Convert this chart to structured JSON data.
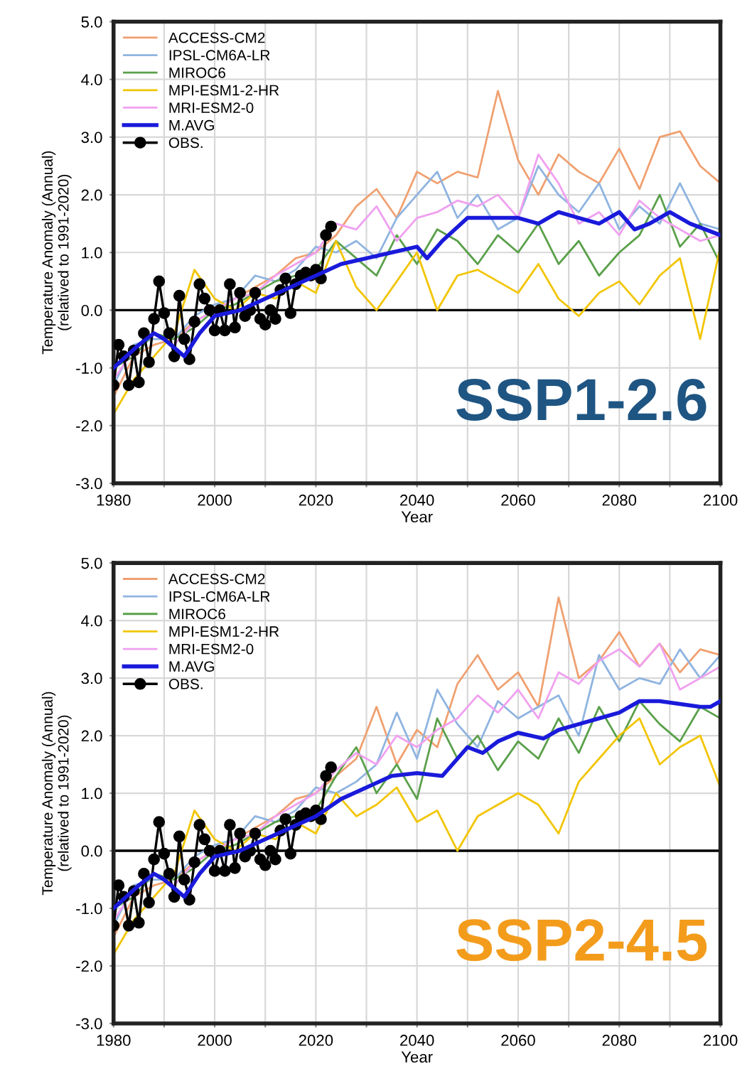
{
  "chart_data": [
    {
      "type": "line",
      "xlabel": "Year",
      "ylabel": "Temperature Anomaly (Annual)\n(relatived to 1991-2020)",
      "annotations": [
        "SSP1-2.6"
      ],
      "xlim": [
        1980,
        2100
      ],
      "xticks": [
        1980,
        {
          "value": 1990,
          "label": null
        },
        2000,
        {
          "value": 2010,
          "label": null
        },
        2020,
        {
          "value": 2030,
          "label": null
        },
        2040,
        {
          "value": 2050,
          "label": null
        },
        2060,
        {
          "value": 2070,
          "label": null
        },
        2080,
        {
          "value": 2090,
          "label": null
        },
        2100
      ],
      "ylim": [
        -3,
        5
      ],
      "yticks": [
        {
          "value": -3,
          "label": "-3.0"
        },
        {
          "value": -2,
          "label": "-2.0"
        },
        {
          "value": -1,
          "label": "-1.0"
        },
        {
          "value": 0,
          "label": "0.0"
        },
        {
          "value": 1,
          "label": "1.0"
        },
        {
          "value": 2,
          "label": "2.0"
        },
        {
          "value": 3,
          "label": "3.0"
        },
        {
          "value": 4,
          "label": "4.0"
        },
        {
          "value": 5,
          "label": "5.0"
        }
      ],
      "grid": true,
      "legend": "top left",
      "line_style": "solid",
      "ref_lines": [
        {
          "axis": "y",
          "value": 0,
          "color": "#000000"
        }
      ],
      "series": [
        {
          "name": "ACCESS-CM2",
          "color": "#f0a070",
          "x": [
            1980,
            1984,
            1988,
            1992,
            1996,
            2000,
            2004,
            2008,
            2012,
            2016,
            2020,
            2024,
            2028,
            2032,
            2036,
            2040,
            2044,
            2048,
            2052,
            2056,
            2060,
            2064,
            2068,
            2072,
            2076,
            2080,
            2084,
            2088,
            2092,
            2096,
            2100
          ],
          "values": [
            -1.5,
            -0.8,
            -0.6,
            -0.5,
            -0.2,
            0.0,
            0.2,
            0.4,
            0.6,
            0.9,
            1.0,
            1.3,
            1.8,
            2.1,
            1.6,
            2.4,
            2.2,
            2.4,
            2.3,
            3.8,
            2.6,
            2.0,
            2.7,
            2.4,
            2.2,
            2.8,
            2.1,
            3.0,
            3.1,
            2.5,
            2.2
          ]
        },
        {
          "name": "IPSL-CM6A-LR",
          "color": "#8fb4e0",
          "x": [
            1980,
            1984,
            1988,
            1992,
            1996,
            2000,
            2004,
            2008,
            2012,
            2016,
            2020,
            2024,
            2028,
            2032,
            2036,
            2040,
            2044,
            2048,
            2052,
            2056,
            2060,
            2064,
            2068,
            2072,
            2076,
            2080,
            2084,
            2088,
            2092,
            2096,
            2100
          ],
          "values": [
            -1.3,
            -0.6,
            -0.5,
            -0.5,
            -0.1,
            0.1,
            0.2,
            0.6,
            0.5,
            0.7,
            1.1,
            1.0,
            1.2,
            0.9,
            1.6,
            2.0,
            2.4,
            1.6,
            2.0,
            1.4,
            1.6,
            2.5,
            2.0,
            1.7,
            2.2,
            1.4,
            1.8,
            1.5,
            2.2,
            1.5,
            1.4
          ]
        },
        {
          "name": "MIROC6",
          "color": "#5aa04a",
          "x": [
            1980,
            1984,
            1988,
            1992,
            1996,
            2000,
            2004,
            2008,
            2012,
            2016,
            2020,
            2024,
            2028,
            2032,
            2036,
            2040,
            2044,
            2048,
            2052,
            2056,
            2060,
            2064,
            2068,
            2072,
            2076,
            2080,
            2084,
            2088,
            2092,
            2096,
            2100
          ],
          "values": [
            -1.0,
            -0.8,
            -0.4,
            -0.5,
            -0.3,
            0.0,
            0.1,
            0.3,
            0.5,
            0.6,
            0.7,
            1.2,
            0.9,
            0.6,
            1.3,
            0.8,
            1.4,
            1.2,
            0.8,
            1.3,
            1.0,
            1.5,
            0.8,
            1.2,
            0.6,
            1.0,
            1.3,
            2.0,
            1.1,
            1.5,
            0.8
          ]
        },
        {
          "name": "MPI-ESM1-2-HR",
          "color": "#f2c500",
          "x": [
            1980,
            1984,
            1988,
            1992,
            1996,
            2000,
            2004,
            2008,
            2012,
            2016,
            2020,
            2024,
            2028,
            2032,
            2036,
            2040,
            2044,
            2048,
            2052,
            2056,
            2060,
            2064,
            2068,
            2072,
            2076,
            2080,
            2084,
            2088,
            2092,
            2096,
            2100
          ],
          "values": [
            -1.8,
            -1.2,
            -0.8,
            -0.4,
            0.7,
            0.2,
            0.0,
            0.3,
            0.2,
            0.5,
            0.3,
            1.2,
            0.4,
            0.0,
            0.5,
            1.0,
            0.0,
            0.6,
            0.7,
            0.5,
            0.3,
            0.8,
            0.2,
            -0.1,
            0.3,
            0.5,
            0.1,
            0.6,
            0.9,
            -0.5,
            1.1
          ]
        },
        {
          "name": "MRI-ESM2-0",
          "color": "#f0a0f0",
          "x": [
            1980,
            1984,
            1988,
            1992,
            1996,
            2000,
            2004,
            2008,
            2012,
            2016,
            2020,
            2024,
            2028,
            2032,
            2036,
            2040,
            2044,
            2048,
            2052,
            2056,
            2060,
            2064,
            2068,
            2072,
            2076,
            2080,
            2084,
            2088,
            2092,
            2096,
            2100
          ],
          "values": [
            -1.2,
            -0.7,
            -0.4,
            -0.6,
            -0.2,
            0.0,
            0.2,
            0.3,
            0.6,
            0.8,
            1.0,
            1.5,
            1.4,
            1.8,
            1.2,
            1.6,
            1.7,
            1.9,
            1.8,
            2.0,
            1.6,
            2.7,
            2.2,
            1.5,
            1.7,
            1.3,
            1.9,
            1.6,
            1.4,
            1.2,
            1.3
          ]
        },
        {
          "name": "M.AVG",
          "color": "#1a1adb",
          "x": [
            1980,
            1985,
            1988,
            1990,
            1994,
            1997,
            2000,
            2005,
            2010,
            2015,
            2020,
            2025,
            2030,
            2035,
            2040,
            2042,
            2045,
            2050,
            2055,
            2060,
            2064,
            2068,
            2072,
            2076,
            2080,
            2083,
            2086,
            2090,
            2094,
            2100
          ],
          "values": [
            -1.0,
            -0.6,
            -0.4,
            -0.5,
            -0.8,
            -0.4,
            -0.1,
            0.0,
            0.2,
            0.4,
            0.6,
            0.8,
            0.9,
            1.0,
            1.1,
            0.9,
            1.2,
            1.6,
            1.6,
            1.6,
            1.5,
            1.7,
            1.6,
            1.5,
            1.7,
            1.4,
            1.5,
            1.7,
            1.5,
            1.3
          ]
        },
        {
          "name": "OBS.",
          "color": "#000000",
          "marker": "circle",
          "x": [
            1980,
            1981,
            1982,
            1983,
            1984,
            1985,
            1986,
            1987,
            1988,
            1989,
            1990,
            1991,
            1992,
            1993,
            1994,
            1995,
            1996,
            1997,
            1998,
            1999,
            2000,
            2001,
            2002,
            2003,
            2004,
            2005,
            2006,
            2007,
            2008,
            2009,
            2010,
            2011,
            2012,
            2013,
            2014,
            2015,
            2016,
            2017,
            2018,
            2019,
            2020,
            2021,
            2022,
            2023
          ],
          "values": [
            -1.3,
            -0.6,
            -0.8,
            -1.3,
            -0.7,
            -1.25,
            -0.4,
            -0.9,
            -0.15,
            0.5,
            -0.05,
            -0.4,
            -0.8,
            0.25,
            -0.5,
            -0.85,
            -0.2,
            0.45,
            0.2,
            0.0,
            -0.35,
            0.0,
            -0.35,
            0.45,
            -0.3,
            0.3,
            -0.1,
            0.0,
            0.3,
            -0.15,
            -0.25,
            0.0,
            -0.15,
            0.35,
            0.55,
            -0.05,
            0.45,
            0.6,
            0.65,
            0.6,
            0.7,
            0.55,
            1.3,
            1.45
          ]
        }
      ]
    },
    {
      "type": "line",
      "xlabel": "Year",
      "ylabel": "Temperature Anomaly (Annual)\n(relatived to 1991-2020)",
      "annotations": [
        "SSP2-4.5"
      ],
      "xlim": [
        1980,
        2100
      ],
      "xticks": [
        1980,
        {
          "value": 1990,
          "label": null
        },
        2000,
        {
          "value": 2010,
          "label": null
        },
        2020,
        {
          "value": 2030,
          "label": null
        },
        2040,
        {
          "value": 2050,
          "label": null
        },
        2060,
        {
          "value": 2070,
          "label": null
        },
        2080,
        {
          "value": 2090,
          "label": null
        },
        2100
      ],
      "ylim": [
        -3,
        5
      ],
      "yticks": [
        {
          "value": -3,
          "label": "-3.0"
        },
        {
          "value": -2,
          "label": "-2.0"
        },
        {
          "value": -1,
          "label": "-1.0"
        },
        {
          "value": 0,
          "label": "0.0"
        },
        {
          "value": 1,
          "label": "1.0"
        },
        {
          "value": 2,
          "label": "2.0"
        },
        {
          "value": 3,
          "label": "3.0"
        },
        {
          "value": 4,
          "label": "4.0"
        },
        {
          "value": 5,
          "label": "5.0"
        }
      ],
      "grid": true,
      "legend": "top left",
      "line_style": "solid",
      "ref_lines": [
        {
          "axis": "y",
          "value": 0,
          "color": "#000000"
        }
      ],
      "series": [
        {
          "name": "ACCESS-CM2",
          "color": "#f0a070",
          "x": [
            1980,
            1984,
            1988,
            1992,
            1996,
            2000,
            2004,
            2008,
            2012,
            2016,
            2020,
            2024,
            2028,
            2032,
            2036,
            2040,
            2044,
            2048,
            2052,
            2056,
            2060,
            2064,
            2068,
            2072,
            2076,
            2080,
            2084,
            2088,
            2092,
            2096,
            2100
          ],
          "values": [
            -1.5,
            -0.8,
            -0.6,
            -0.5,
            -0.2,
            0.0,
            0.2,
            0.4,
            0.6,
            0.9,
            1.0,
            1.3,
            1.6,
            2.5,
            1.5,
            2.1,
            1.8,
            2.9,
            3.4,
            2.8,
            3.1,
            2.5,
            4.4,
            3.0,
            3.3,
            3.8,
            3.2,
            3.6,
            3.1,
            3.5,
            3.4
          ]
        },
        {
          "name": "IPSL-CM6A-LR",
          "color": "#8fb4e0",
          "x": [
            1980,
            1984,
            1988,
            1992,
            1996,
            2000,
            2004,
            2008,
            2012,
            2016,
            2020,
            2024,
            2028,
            2032,
            2036,
            2040,
            2044,
            2048,
            2052,
            2056,
            2060,
            2064,
            2068,
            2072,
            2076,
            2080,
            2084,
            2088,
            2092,
            2096,
            2100
          ],
          "values": [
            -1.3,
            -0.6,
            -0.5,
            -0.5,
            -0.1,
            0.1,
            0.2,
            0.6,
            0.5,
            0.7,
            1.1,
            1.0,
            1.2,
            1.5,
            2.4,
            1.6,
            2.8,
            2.2,
            1.8,
            2.6,
            2.3,
            2.5,
            2.7,
            2.0,
            3.4,
            2.8,
            3.0,
            2.9,
            3.5,
            3.0,
            3.4
          ]
        },
        {
          "name": "MIROC6",
          "color": "#5aa04a",
          "x": [
            1980,
            1984,
            1988,
            1992,
            1996,
            2000,
            2004,
            2008,
            2012,
            2016,
            2020,
            2024,
            2028,
            2032,
            2036,
            2040,
            2044,
            2048,
            2052,
            2056,
            2060,
            2064,
            2068,
            2072,
            2076,
            2080,
            2084,
            2088,
            2092,
            2096,
            2100
          ],
          "values": [
            -1.0,
            -0.8,
            -0.4,
            -0.5,
            -0.3,
            0.0,
            0.1,
            0.3,
            0.5,
            0.6,
            0.7,
            1.3,
            1.8,
            1.0,
            1.5,
            0.9,
            2.3,
            1.6,
            2.0,
            1.4,
            1.9,
            1.6,
            2.3,
            1.7,
            2.5,
            1.9,
            2.6,
            2.2,
            1.9,
            2.5,
            2.3
          ]
        },
        {
          "name": "MPI-ESM1-2-HR",
          "color": "#f2c500",
          "x": [
            1980,
            1984,
            1988,
            1992,
            1996,
            2000,
            2004,
            2008,
            2012,
            2016,
            2020,
            2024,
            2028,
            2032,
            2036,
            2040,
            2044,
            2048,
            2052,
            2056,
            2060,
            2064,
            2068,
            2072,
            2076,
            2080,
            2084,
            2088,
            2092,
            2096,
            2100
          ],
          "values": [
            -1.8,
            -1.2,
            -0.8,
            -0.4,
            0.7,
            0.2,
            0.0,
            0.3,
            0.2,
            0.5,
            0.3,
            1.0,
            0.6,
            0.8,
            1.1,
            0.5,
            0.7,
            0.0,
            0.6,
            0.8,
            1.0,
            0.8,
            0.3,
            1.2,
            1.6,
            2.0,
            2.3,
            1.5,
            1.8,
            2.0,
            1.1
          ]
        },
        {
          "name": "MRI-ESM2-0",
          "color": "#f0a0f0",
          "x": [
            1980,
            1984,
            1988,
            1992,
            1996,
            2000,
            2004,
            2008,
            2012,
            2016,
            2020,
            2024,
            2028,
            2032,
            2036,
            2040,
            2044,
            2048,
            2052,
            2056,
            2060,
            2064,
            2068,
            2072,
            2076,
            2080,
            2084,
            2088,
            2092,
            2096,
            2100
          ],
          "values": [
            -1.2,
            -0.7,
            -0.4,
            -0.6,
            -0.2,
            0.0,
            0.2,
            0.3,
            0.6,
            0.8,
            1.0,
            1.4,
            1.7,
            1.5,
            2.0,
            1.8,
            2.1,
            2.3,
            2.7,
            2.4,
            2.8,
            2.3,
            3.1,
            2.9,
            3.3,
            3.5,
            3.2,
            3.6,
            2.8,
            3.0,
            3.2
          ]
        },
        {
          "name": "M.AVG",
          "color": "#1a1adb",
          "x": [
            1980,
            1985,
            1988,
            1990,
            1994,
            1997,
            2000,
            2005,
            2010,
            2015,
            2020,
            2025,
            2030,
            2035,
            2040,
            2045,
            2048,
            2050,
            2053,
            2056,
            2060,
            2065,
            2068,
            2072,
            2076,
            2080,
            2084,
            2088,
            2092,
            2096,
            2098,
            2100
          ],
          "values": [
            -1.0,
            -0.6,
            -0.4,
            -0.5,
            -0.8,
            -0.4,
            -0.1,
            0.0,
            0.2,
            0.4,
            0.6,
            0.9,
            1.1,
            1.3,
            1.35,
            1.3,
            1.6,
            1.8,
            1.7,
            1.9,
            2.05,
            1.95,
            2.1,
            2.2,
            2.3,
            2.4,
            2.6,
            2.6,
            2.55,
            2.5,
            2.5,
            2.6
          ]
        },
        {
          "name": "OBS.",
          "color": "#000000",
          "marker": "circle",
          "x": [
            1980,
            1981,
            1982,
            1983,
            1984,
            1985,
            1986,
            1987,
            1988,
            1989,
            1990,
            1991,
            1992,
            1993,
            1994,
            1995,
            1996,
            1997,
            1998,
            1999,
            2000,
            2001,
            2002,
            2003,
            2004,
            2005,
            2006,
            2007,
            2008,
            2009,
            2010,
            2011,
            2012,
            2013,
            2014,
            2015,
            2016,
            2017,
            2018,
            2019,
            2020,
            2021,
            2022,
            2023
          ],
          "values": [
            -1.3,
            -0.6,
            -0.8,
            -1.3,
            -0.7,
            -1.25,
            -0.4,
            -0.9,
            -0.15,
            0.5,
            -0.05,
            -0.4,
            -0.8,
            0.25,
            -0.5,
            -0.85,
            -0.2,
            0.45,
            0.2,
            0.0,
            -0.35,
            0.0,
            -0.35,
            0.45,
            -0.3,
            0.3,
            -0.1,
            0.0,
            0.3,
            -0.15,
            -0.25,
            0.0,
            -0.15,
            0.35,
            0.55,
            -0.05,
            0.45,
            0.6,
            0.65,
            0.6,
            0.7,
            0.55,
            1.3,
            1.45
          ]
        }
      ]
    }
  ]
}
